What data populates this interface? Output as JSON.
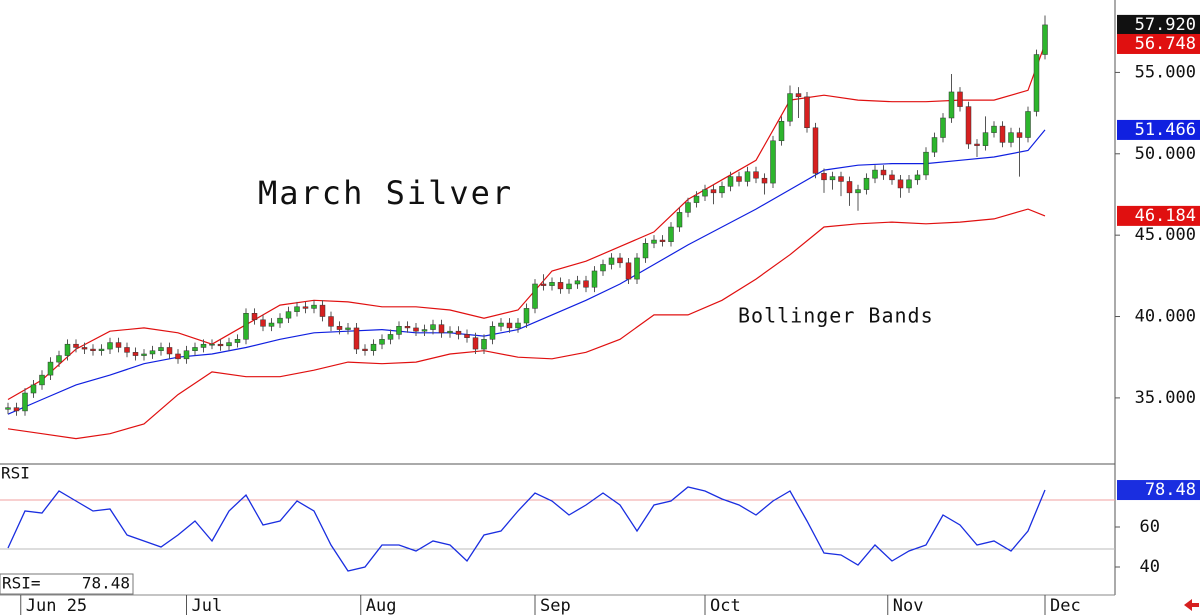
{
  "chart_data": {
    "type": "candlestick",
    "title": "March Silver",
    "annotation": "Bollinger Bands",
    "up_color": "#2db52d",
    "down_color": "#d62020",
    "close_label": "57.920",
    "ylim": [
      31,
      59.45
    ],
    "yticks": [
      {
        "value": 35,
        "label": "35.000"
      },
      {
        "value": 40,
        "label": "40.000"
      },
      {
        "value": 45,
        "label": "45.000"
      },
      {
        "value": 50,
        "label": "50.000"
      },
      {
        "value": 55,
        "label": "55.000"
      }
    ],
    "xticks": [
      {
        "value": 1.5,
        "label": "Jun 25"
      },
      {
        "value": 21,
        "label": "Jul"
      },
      {
        "value": 41.5,
        "label": "Aug"
      },
      {
        "value": 62,
        "label": "Sep"
      },
      {
        "value": 82,
        "label": "Oct"
      },
      {
        "value": 103.5,
        "label": "Nov"
      },
      {
        "value": 122,
        "label": "Dec"
      }
    ],
    "open": [
      34.3,
      34.4,
      34.2,
      35.3,
      35.8,
      36.4,
      37.2,
      37.6,
      38.3,
      38.1,
      38.0,
      37.9,
      38.0,
      38.4,
      38.1,
      37.8,
      37.6,
      37.7,
      37.9,
      38.1,
      37.7,
      37.4,
      37.9,
      38.1,
      38.3,
      38.3,
      38.2,
      38.4,
      38.6,
      40.2,
      39.8,
      39.4,
      39.6,
      39.9,
      40.3,
      40.6,
      40.5,
      40.7,
      40.0,
      39.4,
      39.2,
      39.3,
      38.0,
      37.9,
      38.3,
      38.6,
      38.9,
      39.4,
      39.3,
      39.1,
      39.2,
      39.5,
      39.0,
      39.1,
      38.9,
      38.7,
      38.0,
      38.6,
      39.4,
      39.6,
      39.3,
      39.6,
      40.5,
      42.0,
      41.9,
      42.1,
      41.7,
      42.0,
      42.2,
      41.8,
      42.8,
      43.2,
      43.6,
      43.3,
      42.3,
      43.6,
      44.5,
      44.7,
      44.6,
      45.5,
      46.4,
      47.0,
      47.4,
      47.8,
      47.6,
      48.0,
      48.6,
      48.3,
      48.9,
      48.5,
      48.2,
      50.8,
      52.0,
      53.7,
      53.5,
      51.6,
      48.8,
      48.4,
      48.6,
      48.3,
      47.6,
      47.8,
      48.5,
      49.0,
      48.7,
      48.4,
      47.9,
      48.4,
      48.7,
      50.1,
      51.0,
      52.2,
      53.8,
      52.9,
      50.6,
      50.5,
      51.3,
      51.7,
      50.7,
      51.3,
      51.0,
      52.6,
      56.1
    ],
    "high": [
      34.7,
      34.7,
      35.6,
      36.1,
      36.7,
      37.5,
      37.9,
      38.6,
      38.6,
      38.4,
      38.3,
      38.3,
      38.7,
      38.7,
      38.4,
      38.1,
      38.0,
      38.2,
      38.4,
      38.4,
      38.0,
      38.2,
      38.4,
      38.6,
      38.6,
      38.6,
      38.7,
      38.9,
      40.5,
      40.5,
      40.1,
      39.9,
      40.2,
      40.6,
      40.9,
      40.9,
      41.0,
      41.0,
      40.3,
      39.7,
      39.6,
      39.6,
      38.3,
      38.6,
      38.9,
      39.2,
      39.7,
      39.7,
      39.6,
      39.5,
      39.8,
      39.8,
      39.4,
      39.4,
      39.2,
      39.0,
      38.9,
      39.7,
      39.9,
      39.9,
      39.9,
      40.8,
      42.3,
      42.6,
      42.4,
      42.4,
      42.3,
      42.5,
      42.5,
      43.1,
      43.5,
      43.9,
      43.9,
      43.6,
      43.9,
      44.8,
      45.0,
      45.0,
      45.8,
      46.7,
      47.3,
      47.7,
      48.1,
      48.1,
      48.3,
      48.9,
      48.9,
      49.2,
      49.2,
      48.8,
      51.1,
      52.3,
      54.2,
      54.1,
      53.8,
      51.9,
      49.1,
      48.9,
      48.9,
      48.6,
      48.1,
      48.8,
      49.3,
      49.3,
      49.0,
      48.7,
      48.7,
      49.0,
      50.4,
      51.3,
      52.5,
      54.9,
      54.1,
      53.2,
      50.9,
      52.3,
      52.0,
      52.0,
      51.6,
      51.6,
      52.9,
      56.4,
      58.5
    ],
    "low": [
      34.0,
      33.9,
      33.9,
      35.0,
      35.5,
      36.1,
      36.9,
      37.3,
      37.8,
      37.7,
      37.6,
      37.6,
      37.7,
      37.8,
      37.5,
      37.3,
      37.3,
      37.4,
      37.6,
      37.4,
      37.1,
      37.1,
      37.6,
      37.8,
      38.0,
      37.9,
      37.9,
      38.1,
      38.3,
      39.5,
      39.1,
      39.1,
      39.3,
      39.6,
      40.0,
      40.2,
      40.2,
      39.7,
      39.1,
      38.9,
      38.9,
      37.7,
      37.6,
      37.6,
      38.0,
      38.3,
      38.6,
      39.0,
      38.8,
      38.8,
      38.9,
      38.7,
      38.7,
      38.6,
      38.4,
      37.7,
      37.7,
      38.3,
      39.1,
      39.0,
      39.0,
      39.3,
      40.2,
      41.6,
      41.6,
      41.4,
      41.4,
      41.7,
      41.5,
      41.5,
      42.5,
      42.9,
      43.0,
      42.0,
      42.0,
      43.3,
      44.2,
      44.3,
      44.3,
      45.2,
      46.1,
      46.7,
      47.1,
      46.9,
      47.3,
      47.7,
      48.0,
      48.0,
      48.2,
      47.5,
      47.9,
      50.5,
      51.7,
      52.2,
      51.3,
      48.5,
      47.6,
      47.8,
      47.4,
      46.8,
      46.5,
      47.5,
      48.2,
      48.4,
      48.1,
      47.3,
      47.6,
      48.1,
      48.4,
      49.8,
      50.7,
      51.9,
      52.6,
      50.3,
      49.8,
      50.2,
      51.0,
      50.4,
      50.4,
      48.6,
      50.7,
      52.3,
      55.8
    ],
    "close": [
      34.4,
      34.2,
      35.3,
      35.8,
      36.4,
      37.2,
      37.6,
      38.3,
      38.1,
      38.0,
      37.9,
      38.0,
      38.4,
      38.1,
      37.8,
      37.6,
      37.7,
      37.9,
      38.1,
      37.7,
      37.4,
      37.9,
      38.1,
      38.3,
      38.3,
      38.2,
      38.4,
      38.6,
      40.2,
      39.8,
      39.4,
      39.6,
      39.9,
      40.3,
      40.6,
      40.5,
      40.7,
      40.0,
      39.4,
      39.2,
      39.3,
      38.0,
      37.9,
      38.3,
      38.6,
      38.9,
      39.4,
      39.3,
      39.1,
      39.2,
      39.5,
      39.0,
      39.1,
      38.9,
      38.7,
      38.0,
      38.6,
      39.4,
      39.6,
      39.3,
      39.6,
      40.5,
      42.0,
      41.9,
      42.1,
      41.7,
      42.0,
      42.2,
      41.8,
      42.8,
      43.2,
      43.6,
      43.3,
      42.3,
      43.6,
      44.5,
      44.7,
      44.6,
      45.5,
      46.4,
      47.0,
      47.4,
      47.8,
      47.6,
      48.0,
      48.6,
      48.3,
      48.9,
      48.5,
      48.2,
      50.8,
      52.0,
      53.7,
      53.5,
      51.6,
      48.8,
      48.4,
      48.6,
      48.3,
      47.6,
      47.8,
      48.5,
      49.0,
      48.7,
      48.4,
      47.9,
      48.4,
      48.7,
      50.1,
      51.0,
      52.2,
      53.8,
      52.9,
      50.6,
      50.5,
      51.3,
      51.7,
      50.7,
      51.3,
      51.0,
      52.6,
      56.1,
      57.92
    ],
    "bands": {
      "x": [
        0,
        4,
        8,
        12,
        16,
        20,
        24,
        28,
        32,
        36,
        40,
        44,
        48,
        52,
        56,
        60,
        64,
        68,
        72,
        76,
        80,
        84,
        88,
        92,
        96,
        100,
        104,
        108,
        112,
        116,
        120,
        122
      ],
      "upper": {
        "color": "#e01010",
        "last_label": "56.748",
        "values": [
          34.9,
          36.1,
          38.0,
          39.1,
          39.3,
          39.0,
          38.3,
          39.5,
          40.7,
          41.0,
          40.9,
          40.6,
          40.6,
          40.4,
          39.9,
          40.4,
          42.8,
          43.4,
          44.3,
          45.2,
          47.2,
          48.4,
          49.6,
          53.3,
          53.6,
          53.3,
          53.2,
          53.2,
          53.3,
          53.3,
          53.9,
          56.748
        ]
      },
      "middle": {
        "color": "#1020e0",
        "last_label": "51.466",
        "values": [
          34.0,
          34.9,
          35.8,
          36.4,
          37.1,
          37.5,
          37.7,
          38.1,
          38.6,
          39.0,
          39.1,
          39.2,
          39.0,
          39.0,
          38.8,
          39.2,
          40.1,
          41.0,
          42.0,
          43.2,
          44.4,
          45.5,
          46.6,
          47.8,
          49.0,
          49.3,
          49.4,
          49.4,
          49.6,
          49.8,
          50.2,
          51.466
        ]
      },
      "lower": {
        "color": "#e01010",
        "last_label": "46.184",
        "values": [
          33.1,
          32.8,
          32.5,
          32.8,
          33.4,
          35.2,
          36.6,
          36.3,
          36.3,
          36.7,
          37.2,
          37.1,
          37.2,
          37.7,
          37.9,
          37.5,
          37.4,
          37.8,
          38.6,
          40.1,
          40.1,
          41.0,
          42.3,
          43.8,
          45.5,
          45.7,
          45.8,
          45.7,
          45.8,
          46.0,
          46.6,
          46.184
        ]
      }
    },
    "rsi": {
      "title": "RSI",
      "readout": "RSI=",
      "color": "#1a2ee0",
      "last_label": "78.48",
      "ylim": [
        26,
        91
      ],
      "yticks": [
        60,
        40
      ],
      "levels": [
        {
          "value": 73.5,
          "color": "#f0a0a0"
        },
        {
          "value": 49,
          "color": "#bbbbbb"
        }
      ],
      "x": [
        0,
        2,
        4,
        6,
        8,
        10,
        12,
        14,
        16,
        18,
        20,
        22,
        24,
        26,
        28,
        30,
        32,
        34,
        36,
        38,
        40,
        42,
        44,
        46,
        48,
        50,
        52,
        54,
        56,
        58,
        60,
        62,
        64,
        66,
        68,
        70,
        72,
        74,
        76,
        78,
        80,
        82,
        84,
        86,
        88,
        90,
        92,
        94,
        96,
        98,
        100,
        102,
        104,
        106,
        108,
        110,
        112,
        114,
        116,
        118,
        120,
        122
      ],
      "values": [
        49.5,
        68,
        67,
        78,
        73,
        68,
        69,
        56,
        53,
        50,
        56,
        63,
        53,
        68,
        76,
        61,
        63,
        73,
        68,
        51,
        38,
        40,
        51,
        51,
        48,
        53,
        51,
        43,
        56,
        58,
        68,
        77,
        73,
        66,
        71,
        77,
        71,
        58,
        71,
        73,
        80,
        78,
        74,
        71,
        66,
        73,
        78,
        63,
        47,
        46,
        41,
        51,
        43,
        48,
        51,
        66,
        61,
        51,
        53,
        48,
        58,
        78.48
      ]
    }
  }
}
